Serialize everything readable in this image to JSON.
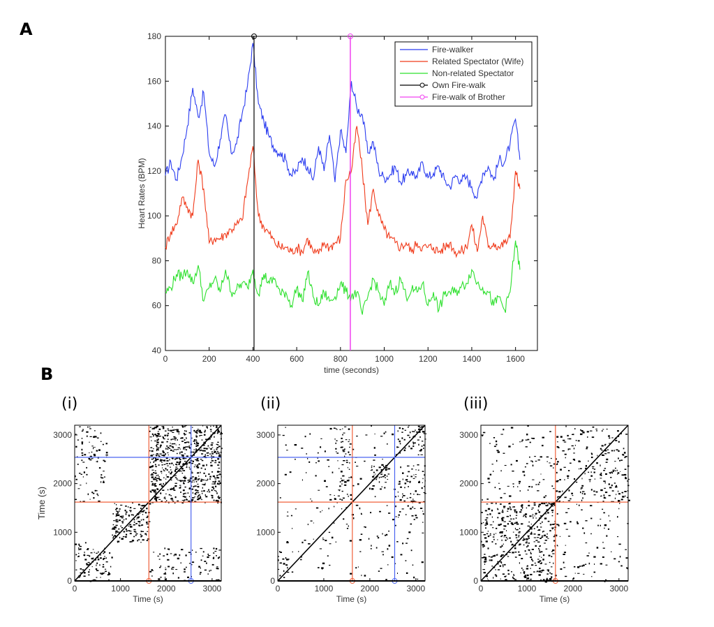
{
  "panels": {
    "a": "A",
    "b": "B"
  },
  "subplot_labels": [
    "(i)",
    "(ii)",
    "(iii)"
  ],
  "colors": {
    "firewalker": "#2a3cf0",
    "wife": "#f03a1a",
    "nonrelated": "#2ce02c",
    "own": "#000000",
    "brother": "#f040f0",
    "axis": "#000000",
    "hline_red": "#f0603a",
    "hline_blue": "#4a64f0"
  },
  "chart_data": [
    {
      "type": "line",
      "title": "",
      "xlabel": "time (seconds)",
      "ylabel": "Heart Rates (BPM)",
      "xlim": [
        0,
        1700
      ],
      "ylim": [
        40,
        180
      ],
      "xticks": [
        "0",
        "200",
        "400",
        "600",
        "800",
        "1000",
        "1200",
        "1400",
        "1600"
      ],
      "yticks": [
        "40",
        "60",
        "80",
        "100",
        "120",
        "140",
        "160",
        "180"
      ],
      "legend_position": "top-right",
      "x": [
        0,
        25,
        50,
        75,
        100,
        125,
        150,
        175,
        200,
        225,
        250,
        275,
        300,
        325,
        350,
        375,
        400,
        425,
        450,
        475,
        500,
        525,
        550,
        575,
        600,
        625,
        650,
        675,
        700,
        725,
        750,
        775,
        800,
        825,
        850,
        875,
        900,
        925,
        950,
        975,
        1000,
        1025,
        1050,
        1075,
        1100,
        1125,
        1150,
        1175,
        1200,
        1225,
        1250,
        1275,
        1300,
        1325,
        1350,
        1375,
        1400,
        1425,
        1450,
        1475,
        1500,
        1525,
        1550,
        1575,
        1600,
        1620
      ],
      "series": [
        {
          "name": "Fire-walker",
          "values": [
            118,
            124,
            116,
            126,
            140,
            157,
            144,
            155,
            128,
            122,
            134,
            145,
            128,
            132,
            145,
            158,
            177,
            150,
            142,
            135,
            130,
            128,
            125,
            118,
            120,
            126,
            122,
            116,
            131,
            120,
            136,
            115,
            138,
            128,
            160,
            148,
            145,
            128,
            133,
            120,
            117,
            118,
            122,
            115,
            118,
            120,
            117,
            124,
            117,
            119,
            122,
            116,
            113,
            118,
            116,
            117,
            113,
            108,
            119,
            122,
            116,
            125,
            124,
            132,
            143,
            125
          ]
        },
        {
          "name": "Related Spectator (Wife)",
          "values": [
            86,
            93,
            96,
            108,
            104,
            100,
            125,
            112,
            88,
            90,
            90,
            92,
            94,
            96,
            98,
            115,
            131,
            100,
            95,
            92,
            88,
            86,
            86,
            84,
            86,
            84,
            90,
            84,
            83,
            88,
            86,
            88,
            90,
            116,
            120,
            140,
            120,
            96,
            112,
            100,
            94,
            90,
            88,
            86,
            88,
            84,
            88,
            86,
            86,
            86,
            84,
            86,
            88,
            84,
            84,
            86,
            96,
            84,
            100,
            86,
            88,
            86,
            88,
            90,
            120,
            112
          ]
        },
        {
          "name": "Non-related Spectator",
          "values": [
            66,
            68,
            74,
            73,
            76,
            70,
            78,
            62,
            68,
            72,
            66,
            76,
            66,
            67,
            70,
            68,
            76,
            65,
            74,
            70,
            72,
            65,
            66,
            60,
            68,
            62,
            75,
            64,
            60,
            66,
            62,
            64,
            70,
            66,
            64,
            66,
            56,
            64,
            72,
            66,
            60,
            70,
            66,
            72,
            64,
            67,
            66,
            70,
            60,
            66,
            58,
            65,
            66,
            66,
            68,
            70,
            76,
            70,
            68,
            66,
            60,
            64,
            58,
            66,
            89,
            76
          ]
        },
        {
          "name": "Own Fire-walk",
          "marker": "circle",
          "vertical_at_x": 405
        },
        {
          "name": "Fire-walk of Brother",
          "marker": "circle",
          "vertical_at_x": 845
        }
      ]
    },
    {
      "type": "heatmap",
      "subtitle": "(i)",
      "xlabel": "Time (s)",
      "ylabel": "Time (s)",
      "xlim": [
        0,
        3200
      ],
      "ylim": [
        0,
        3200
      ],
      "xticks": [
        "0",
        "1000",
        "2000",
        "3000"
      ],
      "yticks": [
        "0",
        "1000",
        "2000",
        "3000"
      ],
      "markers": [
        {
          "color": "red",
          "at": 1620
        },
        {
          "color": "blue",
          "at": 2540
        }
      ]
    },
    {
      "type": "heatmap",
      "subtitle": "(ii)",
      "xlabel": "Time (s)",
      "ylabel": "",
      "xlim": [
        0,
        3200
      ],
      "ylim": [
        0,
        3200
      ],
      "xticks": [
        "0",
        "1000",
        "2000",
        "3000"
      ],
      "yticks": [
        "0",
        "1000",
        "2000",
        "3000"
      ],
      "markers": [
        {
          "color": "red",
          "at": 1620
        },
        {
          "color": "blue",
          "at": 2540
        }
      ]
    },
    {
      "type": "heatmap",
      "subtitle": "(iii)",
      "xlabel": "Time (s)",
      "ylabel": "",
      "xlim": [
        0,
        3200
      ],
      "ylim": [
        0,
        3200
      ],
      "xticks": [
        "0",
        "1000",
        "2000",
        "3000"
      ],
      "yticks": [
        "0",
        "1000",
        "2000",
        "3000"
      ],
      "markers": [
        {
          "color": "red",
          "at": 1620
        }
      ]
    }
  ]
}
